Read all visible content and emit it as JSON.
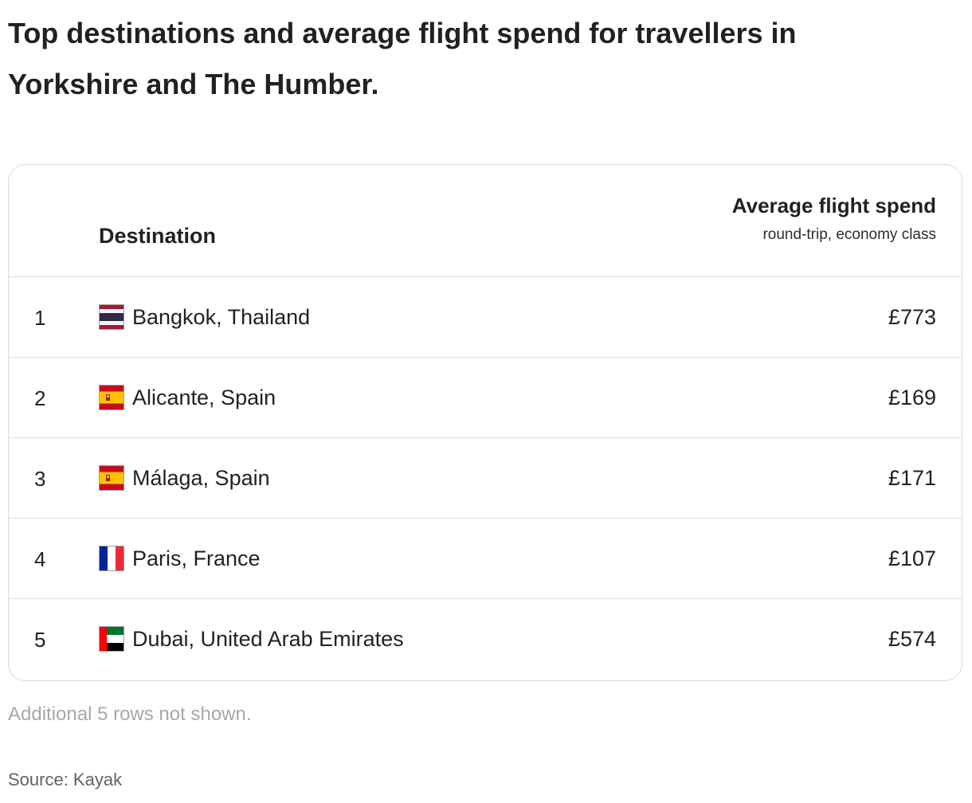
{
  "title": "Top destinations and average flight spend for travellers in Yorkshire and The Humber.",
  "table": {
    "header_destination": "Destination",
    "header_spend": "Average flight spend",
    "header_spend_sub": "round-trip, economy class",
    "rows": [
      {
        "rank": "1",
        "flag": "thailand-flag",
        "destination": "Bangkok, Thailand",
        "price": "£773"
      },
      {
        "rank": "2",
        "flag": "spain-flag",
        "destination": "Alicante, Spain",
        "price": "£169"
      },
      {
        "rank": "3",
        "flag": "spain-flag",
        "destination": "Málaga, Spain",
        "price": "£171"
      },
      {
        "rank": "4",
        "flag": "france-flag",
        "destination": "Paris, France",
        "price": "£107"
      },
      {
        "rank": "5",
        "flag": "uae-flag",
        "destination": "Dubai, United Arab Emirates",
        "price": "£574"
      }
    ]
  },
  "footnote": "Additional 5 rows not shown.",
  "source": "Source: Kayak",
  "colors": {
    "text": "#1e2225",
    "border": "#dcdfe1",
    "muted": "#a5a9ad",
    "source": "#5f6368"
  }
}
